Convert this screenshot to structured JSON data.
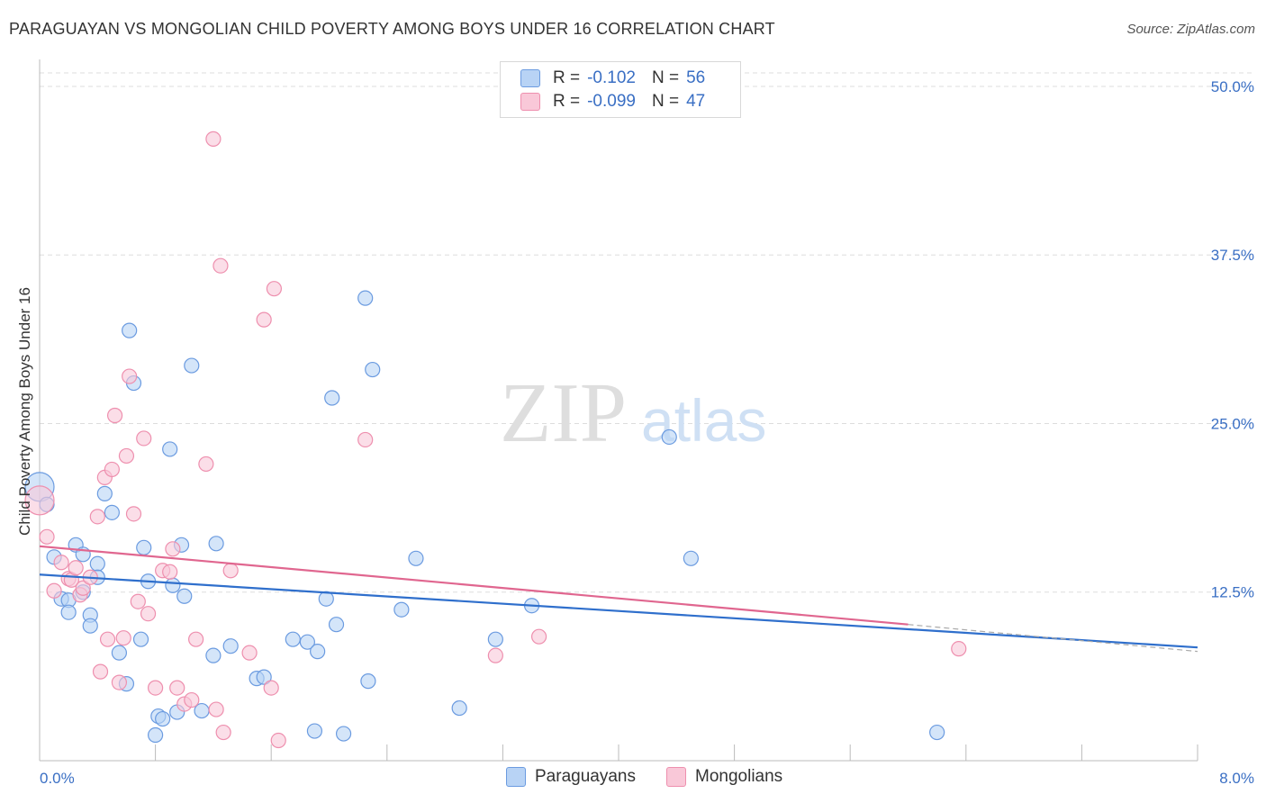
{
  "title": "PARAGUAYAN VS MONGOLIAN CHILD POVERTY AMONG BOYS UNDER 16 CORRELATION CHART",
  "source": "Source: ZipAtlas.com",
  "watermark": {
    "zip": "ZIP",
    "atlas": "atlas"
  },
  "colors": {
    "paraguayans_fill": "#b8d3f5",
    "paraguayans_stroke": "#6b9be0",
    "paraguayans_line": "#2f6fcc",
    "mongolians_fill": "#f9c8d8",
    "mongolians_stroke": "#ee8fae",
    "mongolians_line": "#e0668f",
    "axis_text": "#3a6fc4",
    "grid": "#dddddd"
  },
  "legend": {
    "rows": [
      {
        "r_label": "R =",
        "r_value": "-0.102",
        "n_label": "N =",
        "n_value": "56"
      },
      {
        "r_label": "R =",
        "r_value": "-0.099",
        "n_label": "N =",
        "n_value": "47"
      }
    ]
  },
  "bottom_legend": [
    "Paraguayans",
    "Mongolians"
  ],
  "chart_data": {
    "type": "scatter",
    "title": "PARAGUAYAN VS MONGOLIAN CHILD POVERTY AMONG BOYS UNDER 16 CORRELATION CHART",
    "xlabel": "",
    "ylabel": "Child Poverty Among Boys Under 16",
    "xlim": [
      0,
      8
    ],
    "ylim": [
      0,
      52
    ],
    "x_ticks": [
      "0.0%",
      "8.0%"
    ],
    "y_ticks": [
      {
        "value": 12.5,
        "label": "12.5%"
      },
      {
        "value": 25.0,
        "label": "25.0%"
      },
      {
        "value": 37.5,
        "label": "37.5%"
      },
      {
        "value": 50.0,
        "label": "50.0%"
      }
    ],
    "grid": true,
    "legend_position": "top-center",
    "series": [
      {
        "name": "Paraguayans",
        "r": -0.102,
        "n": 56,
        "trend": {
          "x": [
            0,
            8
          ],
          "y": [
            13.8,
            8.4
          ]
        },
        "points": [
          [
            0.0,
            20.3
          ],
          [
            0.05,
            19.0
          ],
          [
            0.1,
            15.1
          ],
          [
            0.15,
            12.0
          ],
          [
            0.2,
            11.9
          ],
          [
            0.2,
            11.0
          ],
          [
            0.25,
            16.0
          ],
          [
            0.3,
            12.5
          ],
          [
            0.3,
            15.3
          ],
          [
            0.35,
            10.8
          ],
          [
            0.35,
            10.0
          ],
          [
            0.4,
            14.6
          ],
          [
            0.4,
            13.6
          ],
          [
            0.45,
            19.8
          ],
          [
            0.5,
            18.4
          ],
          [
            0.55,
            8.0
          ],
          [
            0.6,
            5.7
          ],
          [
            0.62,
            31.9
          ],
          [
            0.65,
            28.0
          ],
          [
            0.7,
            9.0
          ],
          [
            0.72,
            15.8
          ],
          [
            0.75,
            13.3
          ],
          [
            0.8,
            1.9
          ],
          [
            0.82,
            3.3
          ],
          [
            0.85,
            3.1
          ],
          [
            0.9,
            23.1
          ],
          [
            0.92,
            13.0
          ],
          [
            0.95,
            3.6
          ],
          [
            0.98,
            16.0
          ],
          [
            1.0,
            12.2
          ],
          [
            1.05,
            29.3
          ],
          [
            1.12,
            3.7
          ],
          [
            1.2,
            7.8
          ],
          [
            1.22,
            16.1
          ],
          [
            1.32,
            8.5
          ],
          [
            1.5,
            6.1
          ],
          [
            1.55,
            6.2
          ],
          [
            1.75,
            9.0
          ],
          [
            1.85,
            8.8
          ],
          [
            1.9,
            2.2
          ],
          [
            1.92,
            8.1
          ],
          [
            1.98,
            12.0
          ],
          [
            2.02,
            26.9
          ],
          [
            2.05,
            10.1
          ],
          [
            2.1,
            2.0
          ],
          [
            2.25,
            34.3
          ],
          [
            2.27,
            5.9
          ],
          [
            2.3,
            29.0
          ],
          [
            2.5,
            11.2
          ],
          [
            2.6,
            15.0
          ],
          [
            2.9,
            3.9
          ],
          [
            3.15,
            9.0
          ],
          [
            3.4,
            11.5
          ],
          [
            4.35,
            24.0
          ],
          [
            4.5,
            15.0
          ],
          [
            6.2,
            2.1
          ]
        ]
      },
      {
        "name": "Mongolians",
        "r": -0.099,
        "n": 47,
        "trend": {
          "x": [
            0,
            6.0
          ],
          "y": [
            15.9,
            10.1
          ]
        },
        "trend_dashed": {
          "x": [
            6.0,
            8
          ],
          "y": [
            10.1,
            8.1
          ]
        },
        "points": [
          [
            0.0,
            19.3
          ],
          [
            0.05,
            16.6
          ],
          [
            0.1,
            12.6
          ],
          [
            0.15,
            14.7
          ],
          [
            0.2,
            13.5
          ],
          [
            0.22,
            13.4
          ],
          [
            0.25,
            14.3
          ],
          [
            0.28,
            12.3
          ],
          [
            0.3,
            12.8
          ],
          [
            0.35,
            13.6
          ],
          [
            0.4,
            18.1
          ],
          [
            0.42,
            6.6
          ],
          [
            0.45,
            21.0
          ],
          [
            0.47,
            9.0
          ],
          [
            0.5,
            21.6
          ],
          [
            0.52,
            25.6
          ],
          [
            0.55,
            5.8
          ],
          [
            0.58,
            9.1
          ],
          [
            0.6,
            22.6
          ],
          [
            0.62,
            28.5
          ],
          [
            0.65,
            18.3
          ],
          [
            0.68,
            11.8
          ],
          [
            0.72,
            23.9
          ],
          [
            0.75,
            10.9
          ],
          [
            0.8,
            5.4
          ],
          [
            0.85,
            14.1
          ],
          [
            0.9,
            14.0
          ],
          [
            0.92,
            15.7
          ],
          [
            0.95,
            5.4
          ],
          [
            1.0,
            4.2
          ],
          [
            1.05,
            4.5
          ],
          [
            1.08,
            9.0
          ],
          [
            1.15,
            22.0
          ],
          [
            1.2,
            46.1
          ],
          [
            1.22,
            3.8
          ],
          [
            1.25,
            36.7
          ],
          [
            1.27,
            2.1
          ],
          [
            1.32,
            14.1
          ],
          [
            1.45,
            8.0
          ],
          [
            1.55,
            32.7
          ],
          [
            1.6,
            5.4
          ],
          [
            1.62,
            35.0
          ],
          [
            1.65,
            1.5
          ],
          [
            2.25,
            23.8
          ],
          [
            3.15,
            7.8
          ],
          [
            3.45,
            9.2
          ],
          [
            6.35,
            8.3
          ]
        ]
      }
    ]
  }
}
